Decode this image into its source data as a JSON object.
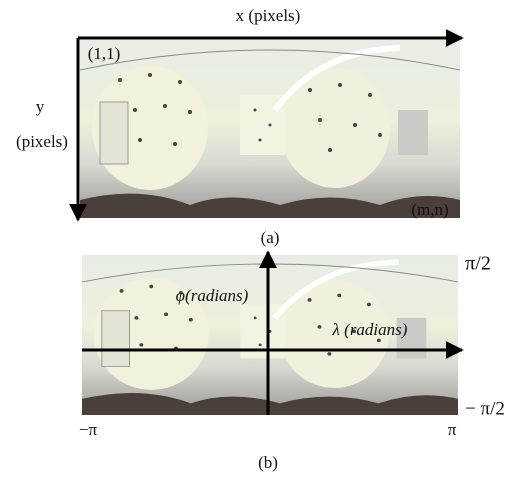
{
  "panel_a": {
    "x_axis_label": "x (pixels)",
    "origin_label": "(1,1)",
    "y_axis_label": [
      "y",
      "(pixels)"
    ],
    "corner_label": "(m,n)",
    "caption": "(a)"
  },
  "panel_b": {
    "top_label": "π/2",
    "vertical_axis_label": "φ(radians)",
    "horizontal_axis_label": "λ (radians)",
    "left_label": "−π",
    "right_label": "π",
    "bottom_label": "− π/2",
    "caption": "(b)"
  }
}
